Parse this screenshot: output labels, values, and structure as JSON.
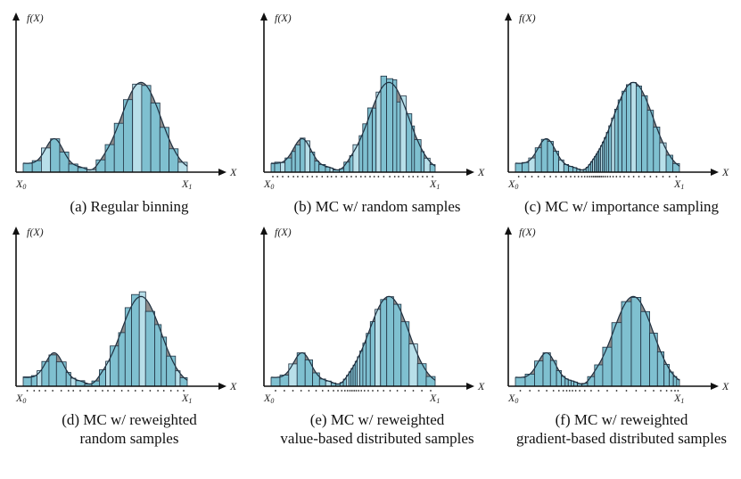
{
  "axis": {
    "y_label": "f(X)",
    "x_label": "X",
    "x0_label": "X",
    "x0_sub": "0",
    "x1_label": "X",
    "x1_sub": "1"
  },
  "colors": {
    "bar_fill": "#7fc0d0",
    "bar_highlight": "#b8dfe9",
    "bar_stroke": "#1f3040",
    "curve_fill": "#8c8c8c",
    "curve_stroke": "#1f3040",
    "axis": "#111111"
  },
  "panels": [
    {
      "id": "a",
      "caption_lines": [
        "(a) Regular binning"
      ],
      "type": "regular",
      "bins": 18,
      "samples": 0
    },
    {
      "id": "b",
      "caption_lines": [
        "(b) MC w/ random samples"
      ],
      "type": "random",
      "bins": 34,
      "samples": 34
    },
    {
      "id": "c",
      "caption_lines": [
        "(c) MC w/ importance sampling"
      ],
      "type": "importance",
      "bins": 40,
      "samples": 40
    },
    {
      "id": "d",
      "caption_lines": [
        "(d) MC w/ reweighted",
        "random samples"
      ],
      "type": "random",
      "bins": 24,
      "samples": 24
    },
    {
      "id": "e",
      "caption_lines": [
        "(e) MC w/ reweighted",
        "value-based distributed samples"
      ],
      "type": "importance",
      "bins": 30,
      "samples": 30
    },
    {
      "id": "f",
      "caption_lines": [
        "(f) MC w/ reweighted",
        "gradient-based distributed samples"
      ],
      "type": "gradient",
      "bins": 26,
      "samples": 26
    }
  ]
}
